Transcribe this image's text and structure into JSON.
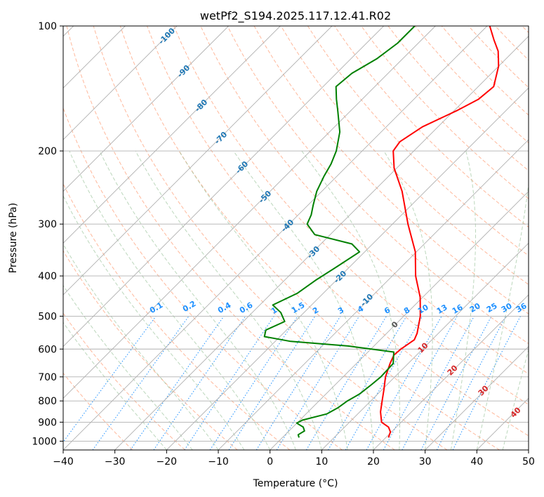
{
  "chart_data": {
    "type": "line",
    "subtype": "skew-T log-P diagram",
    "title": "wetPf2_S194.2025.117.12.41.R02",
    "xlabel": "Temperature (°C)",
    "ylabel": "Pressure (hPa)",
    "xlim": [
      -40,
      50
    ],
    "ylim": [
      1050,
      100
    ],
    "y_scale": "log",
    "grid": true,
    "x_ticks": [
      -40,
      -30,
      -20,
      -10,
      0,
      10,
      20,
      30,
      40,
      50
    ],
    "y_ticks": [
      100,
      200,
      300,
      400,
      500,
      600,
      700,
      800,
      900,
      1000
    ],
    "series": [
      {
        "color": "#ff0000",
        "points": [
          {
            "p": 980,
            "t": 20.5
          },
          {
            "p": 950,
            "t": 19.8
          },
          {
            "p": 925,
            "t": 18.5
          },
          {
            "p": 900,
            "t": 16.2
          },
          {
            "p": 850,
            "t": 14.0
          },
          {
            "p": 800,
            "t": 12.2
          },
          {
            "p": 750,
            "t": 10.3
          },
          {
            "p": 700,
            "t": 8.2
          },
          {
            "p": 650,
            "t": 6.5
          },
          {
            "p": 620,
            "t": 5.6
          },
          {
            "p": 600,
            "t": 5.8
          },
          {
            "p": 570,
            "t": 6.6
          },
          {
            "p": 550,
            "t": 5.9
          },
          {
            "p": 500,
            "t": 3.2
          },
          {
            "p": 450,
            "t": -0.5
          },
          {
            "p": 400,
            "t": -5.5
          },
          {
            "p": 350,
            "t": -10.2
          },
          {
            "p": 300,
            "t": -17.0
          },
          {
            "p": 250,
            "t": -24.5
          },
          {
            "p": 220,
            "t": -30.5
          },
          {
            "p": 200,
            "t": -34.0
          },
          {
            "p": 190,
            "t": -34.5
          },
          {
            "p": 175,
            "t": -33.0
          },
          {
            "p": 160,
            "t": -29.5
          },
          {
            "p": 150,
            "t": -27.5
          },
          {
            "p": 140,
            "t": -27.0
          },
          {
            "p": 125,
            "t": -30.0
          },
          {
            "p": 115,
            "t": -33.0
          },
          {
            "p": 108,
            "t": -36.0
          },
          {
            "p": 100,
            "t": -39.5
          }
        ]
      },
      {
        "color": "#008000",
        "points": [
          {
            "p": 980,
            "t": 3.2
          },
          {
            "p": 965,
            "t": 2.5
          },
          {
            "p": 945,
            "t": 3.0
          },
          {
            "p": 925,
            "t": 2.0
          },
          {
            "p": 905,
            "t": 0.0
          },
          {
            "p": 890,
            "t": 0.5
          },
          {
            "p": 860,
            "t": 4.0
          },
          {
            "p": 830,
            "t": 5.0
          },
          {
            "p": 800,
            "t": 5.5
          },
          {
            "p": 770,
            "t": 6.5
          },
          {
            "p": 730,
            "t": 7.0
          },
          {
            "p": 700,
            "t": 7.3
          },
          {
            "p": 650,
            "t": 7.1
          },
          {
            "p": 610,
            "t": 5.0
          },
          {
            "p": 590,
            "t": -5.0
          },
          {
            "p": 575,
            "t": -17.0
          },
          {
            "p": 560,
            "t": -23.0
          },
          {
            "p": 540,
            "t": -24.0
          },
          {
            "p": 515,
            "t": -22.0
          },
          {
            "p": 490,
            "t": -24.5
          },
          {
            "p": 470,
            "t": -27.5
          },
          {
            "p": 440,
            "t": -25.0
          },
          {
            "p": 410,
            "t": -24.0
          },
          {
            "p": 380,
            "t": -22.5
          },
          {
            "p": 350,
            "t": -21.0
          },
          {
            "p": 335,
            "t": -24.0
          },
          {
            "p": 318,
            "t": -33.0
          },
          {
            "p": 300,
            "t": -36.5
          },
          {
            "p": 285,
            "t": -37.5
          },
          {
            "p": 270,
            "t": -39.0
          },
          {
            "p": 250,
            "t": -41.0
          },
          {
            "p": 230,
            "t": -42.5
          },
          {
            "p": 215,
            "t": -43.5
          },
          {
            "p": 200,
            "t": -45.0
          },
          {
            "p": 180,
            "t": -48.0
          },
          {
            "p": 160,
            "t": -52.5
          },
          {
            "p": 150,
            "t": -55.0
          },
          {
            "p": 140,
            "t": -57.5
          },
          {
            "p": 130,
            "t": -57.0
          },
          {
            "p": 120,
            "t": -55.0
          },
          {
            "p": 110,
            "t": -54.0
          },
          {
            "p": 100,
            "t": -54.0
          }
        ]
      }
    ],
    "dry_adiabat_labels": [
      "-100",
      "-90",
      "-80",
      "-70",
      "-60",
      "-50",
      "-40",
      "-30",
      "-20",
      "-10"
    ],
    "moist_adiabat_labels": [
      "0",
      "10",
      "20",
      "30",
      "40"
    ],
    "mixing_ratio_labels": [
      "0.1",
      "0.2",
      "0.4",
      "0.6",
      "1",
      "1.5",
      "2",
      "3",
      "4",
      "6",
      "8",
      "10",
      "13",
      "16",
      "20",
      "25",
      "30",
      "36"
    ],
    "colors": {
      "temperature": "#ff0000",
      "dewpoint": "#008000",
      "isotherm": "#b0b0b0",
      "dry_adiabat": "#ffa07a",
      "moist_adiabat": "#8fbc8f",
      "mixing_ratio": "#1e90ff",
      "dry_adiabat_label": "#1f77b4",
      "moist_adiabat_label": "#d62728",
      "mixing_ratio_label": "#1e90ff"
    }
  }
}
